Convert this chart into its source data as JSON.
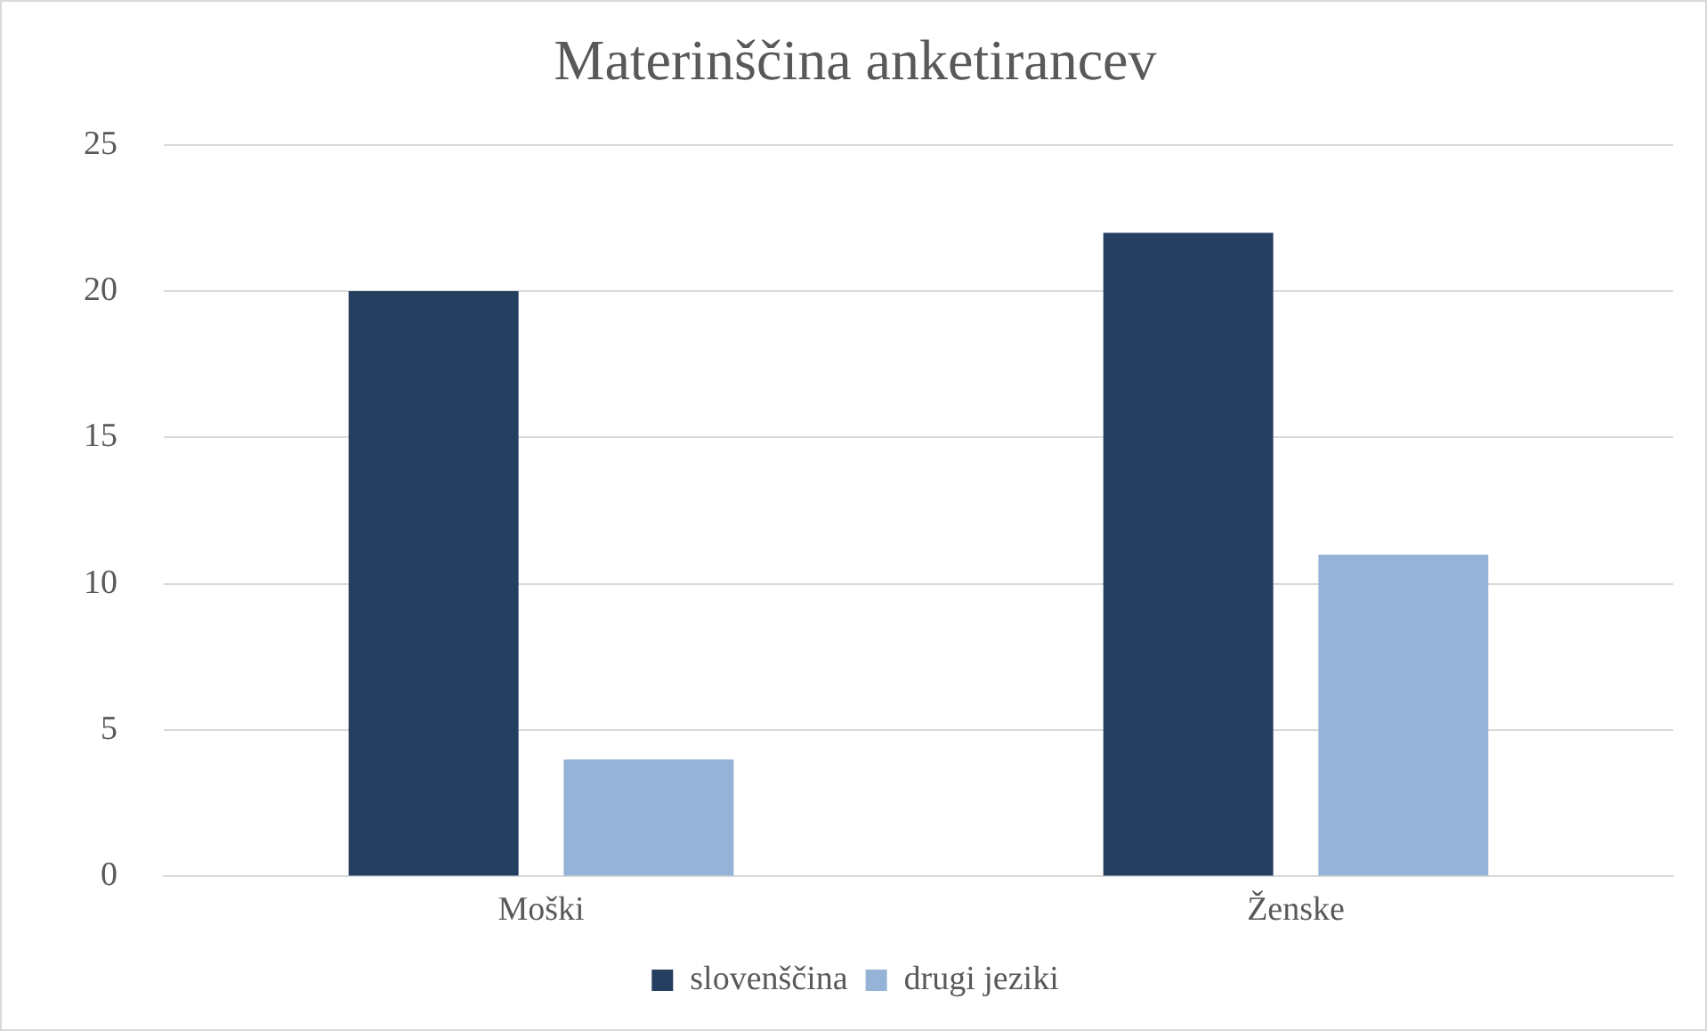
{
  "chart_data": {
    "type": "bar",
    "title": "Materinščina anketirancev",
    "categories": [
      "Moški",
      "Ženske"
    ],
    "series": [
      {
        "name": "slovenščina",
        "color": "#243f60",
        "values": [
          20,
          22
        ]
      },
      {
        "name": "drugi jeziki",
        "color": "#95b3d7",
        "values": [
          4,
          11
        ]
      }
    ],
    "ylim": [
      0,
      25
    ],
    "yticks": [
      0,
      5,
      10,
      15,
      20,
      25
    ],
    "grid": "y",
    "legend": "bottom"
  }
}
